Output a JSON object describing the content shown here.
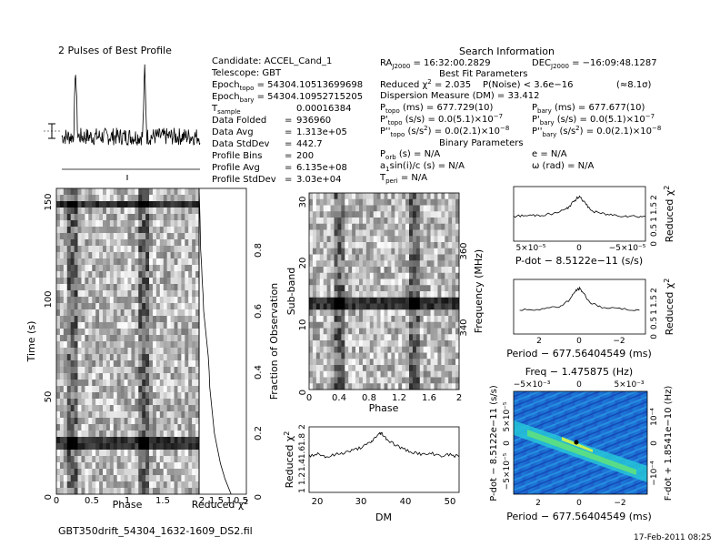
{
  "footer": {
    "filename": "GBT350drift_54304_1632-1609_DS2.fil",
    "date": "17-Feb-2011 08:25"
  },
  "info": {
    "candidate": "Candidate:  ACCEL_Cand_1",
    "telescope": "Telescope:  GBT",
    "epoch_topo": "Epoch<sub>topo</sub> = 54304.10513699698",
    "epoch_bary": "Epoch<sub>bary</sub> = 54304.10952715205",
    "t_sample": "T<sub>sample</sub>",
    "rows": [
      {
        "label": "Data Folded",
        "value": "936960"
      },
      {
        "label": "Data Avg",
        "value": "1.313e+05"
      },
      {
        "label": "Data StdDev",
        "value": "442.7"
      },
      {
        "label": "Profile Bins",
        "value": "200"
      },
      {
        "label": "Profile Avg",
        "value": "6.135e+08"
      },
      {
        "label": "Profile StdDev",
        "value": "3.03e+04"
      }
    ],
    "t_sample_value": "0.00016384",
    "search_title": "Search Information",
    "ra": "RA",
    "ra_sub": "J2000",
    "ra_value": " = 16:32:00.2829",
    "dec": "DEC",
    "dec_sub": "J2000",
    "dec_value": " = −16:09:48.1287",
    "best_fit_title": "Best Fit Parameters",
    "reduced_chi2": "Reduced χ",
    "reduced_chi2_value": " = 2.035",
    "p_noise": "P(Noise) < 3.6e−16",
    "sigma": "(≈8.1σ)",
    "dm_line": "Dispersion Measure (DM) = 33.412",
    "p_topo": "P",
    "p_topo_sub": "topo",
    "p_topo_value": " (ms)     =  677.729(10)",
    "p_bary": "P",
    "p_bary_sub": "bary",
    "p_bary_value": " (ms)     =  677.677(10)",
    "pd_topo_value": " (s/s)  = 0.0(5.1)×10",
    "pd_bary_value": " (s/s)  = 0.0(5.1)×10",
    "pd_exp": "−7",
    "pdd_topo_value": " (s/s²) = 0.0(2.1)×10",
    "pdd_bary_value": " (s/s²) = 0.0(2.1)×10",
    "pdd_exp": "−8",
    "binary_title": "Binary Parameters",
    "p_orb": "P",
    "p_orb_sub": "orb",
    "p_orb_value": " (s) = N/A",
    "e_value": "e = N/A",
    "a1sini": "a",
    "a1sini_rest": "sin(i)/c (s) = N/A",
    "omega": "ω (rad) = N/A",
    "t_peri": "T",
    "t_peri_sub": "peri",
    "t_peri_value": " = N/A"
  },
  "chart_data": [
    {
      "type": "line",
      "title": "2 Pulses of Best Profile",
      "xlabel": "",
      "ylabel": "",
      "x": [
        0,
        0.04,
        0.08,
        0.12,
        0.16,
        0.2,
        0.24,
        0.28,
        0.32,
        0.36,
        0.4,
        0.44,
        0.48,
        0.5,
        0.52,
        0.56,
        0.6,
        0.64,
        0.68,
        0.72,
        0.76,
        0.8,
        0.84,
        0.88,
        0.92,
        0.96,
        1.0,
        1.04,
        1.08,
        1.12,
        1.16,
        1.2,
        1.24,
        1.28,
        1.32,
        1.36,
        1.4,
        1.44,
        1.48,
        1.5,
        1.52,
        1.56,
        1.6,
        1.64,
        1.68,
        1.72,
        1.76,
        1.8,
        1.84,
        1.88,
        1.92,
        1.96,
        2.0
      ],
      "y": [
        0.1,
        -0.2,
        0.3,
        0.5,
        1.0,
        3.0,
        0.6,
        0.2,
        -0.3,
        0.4,
        -0.1,
        0.2,
        -0.4,
        0.1,
        0.3,
        -0.2,
        0.1,
        0.4,
        -0.3,
        0.2,
        0.0,
        0.3,
        -0.2,
        0.1,
        -0.4,
        0.2,
        0.1,
        -0.2,
        0.3,
        0.5,
        1.0,
        3.0,
        0.6,
        0.2,
        -0.3,
        0.4,
        -0.1,
        0.2,
        -0.4,
        0.1,
        0.3,
        -0.2,
        0.1,
        0.4,
        -0.3,
        0.2,
        0.0,
        0.3,
        -0.2,
        0.1,
        -0.4,
        0.2,
        0.1
      ],
      "peak_phase": 0.2
    },
    {
      "type": "heatmap",
      "xlabel": "Phase",
      "ylabel": "Time (s)",
      "xticks": [
        "0",
        "0.5",
        "1",
        "1.5"
      ],
      "yticks": [
        "0",
        "50",
        "100",
        "150"
      ],
      "xlim": [
        0,
        2
      ],
      "ylim": [
        0,
        155
      ],
      "colormap": "grayscale"
    },
    {
      "type": "line",
      "xlabel": "Reduced χ²",
      "ylabel": "Fraction of Observation",
      "xticks": [
        "2",
        "1.5",
        "1",
        "0.5"
      ],
      "yticks": [
        "0",
        "0.2",
        "0.4",
        "0.6",
        "0.8"
      ],
      "x": [
        1.0,
        1.2,
        1.35,
        1.45,
        1.55,
        1.6,
        1.65,
        1.7,
        1.72,
        1.75,
        1.8,
        1.85,
        1.9,
        1.92,
        1.95,
        1.97,
        2.0,
        2.02,
        2.05
      ],
      "y": [
        0.0,
        0.05,
        0.1,
        0.15,
        0.2,
        0.25,
        0.3,
        0.35,
        0.4,
        0.45,
        0.5,
        0.55,
        0.6,
        0.65,
        0.7,
        0.75,
        0.8,
        0.9,
        1.0
      ]
    },
    {
      "type": "heatmap",
      "xlabel": "Phase",
      "ylabel": "Sub-band",
      "y2label": "Frequency (MHz)",
      "xticks": [
        "0",
        "0.4",
        "0.8",
        "1.2",
        "1.6",
        "2"
      ],
      "yticks": [
        "0",
        "10",
        "20",
        "30"
      ],
      "y2ticks": [
        "340",
        "360"
      ],
      "xlim": [
        0,
        2
      ],
      "ylim": [
        0,
        32
      ],
      "colormap": "grayscale"
    },
    {
      "type": "line",
      "xlabel": "DM",
      "ylabel": "Reduced χ²",
      "xticks": [
        "20",
        "30",
        "40",
        "50"
      ],
      "yticks": [
        "1",
        "1.2",
        "1.4",
        "1.6",
        "1.8",
        "2"
      ],
      "x": [
        17,
        19,
        21,
        23,
        25,
        27,
        29,
        31,
        32,
        33,
        33.4,
        34,
        35,
        37,
        39,
        41,
        43,
        45,
        47,
        49,
        51
      ],
      "y": [
        1.62,
        1.66,
        1.6,
        1.64,
        1.68,
        1.72,
        1.78,
        1.86,
        1.96,
        2.02,
        2.035,
        1.98,
        1.9,
        1.8,
        1.72,
        1.68,
        1.64,
        1.66,
        1.62,
        1.64,
        1.6
      ]
    },
    {
      "type": "line",
      "xlabel": "P-dot − 8.5122e−11 (s/s)",
      "ylabel": "Reduced χ²",
      "xticks": [
        "5×10⁻⁵",
        "0",
        "−5×10⁻⁵"
      ],
      "yticks": [
        "0",
        "0.5",
        "1",
        "1.5",
        "2"
      ],
      "x": [
        -1.0,
        -0.8,
        -0.6,
        -0.4,
        -0.2,
        -0.1,
        0.0,
        0.1,
        0.2,
        0.4,
        0.6,
        0.8,
        1.0
      ],
      "y": [
        1.1,
        1.12,
        1.15,
        1.2,
        1.4,
        1.7,
        2.0,
        1.6,
        1.3,
        1.18,
        1.13,
        1.1,
        1.08
      ]
    },
    {
      "type": "line",
      "xlabel": "Period − 677.56404549 (ms)",
      "ylabel": "Reduced χ²",
      "xticks": [
        "2",
        "0",
        "−2"
      ],
      "yticks": [
        "0",
        "0.5",
        "1",
        "1.5",
        "2"
      ],
      "x": [
        3,
        2,
        1,
        0.5,
        0.2,
        0,
        -0.2,
        -0.5,
        -1,
        -2,
        -3
      ],
      "y": [
        1.05,
        1.1,
        1.2,
        1.5,
        1.9,
        2.0,
        1.8,
        1.4,
        1.2,
        1.1,
        1.05
      ]
    },
    {
      "type": "heatmap",
      "title": "Freq − 1.475875 (Hz)",
      "xlabel": "Period − 677.56404549 (ms)",
      "ylabel": "P-dot − 8.5122e−11 (s/s)",
      "y2label": "F-dot + 1.8541e−10 (Hz)",
      "xticks": [
        "2",
        "0",
        "−2"
      ],
      "x2ticks": [
        "−5×10⁻³",
        "0",
        "5×10⁻³"
      ],
      "yticks": [
        "5×10⁻⁵",
        "0",
        "−5×10⁻⁵"
      ],
      "y2ticks": [
        "10⁻⁴",
        "0",
        "−10⁻⁴"
      ],
      "colormap": "cool-to-warm (blue, cyan, green, yellow)"
    }
  ]
}
